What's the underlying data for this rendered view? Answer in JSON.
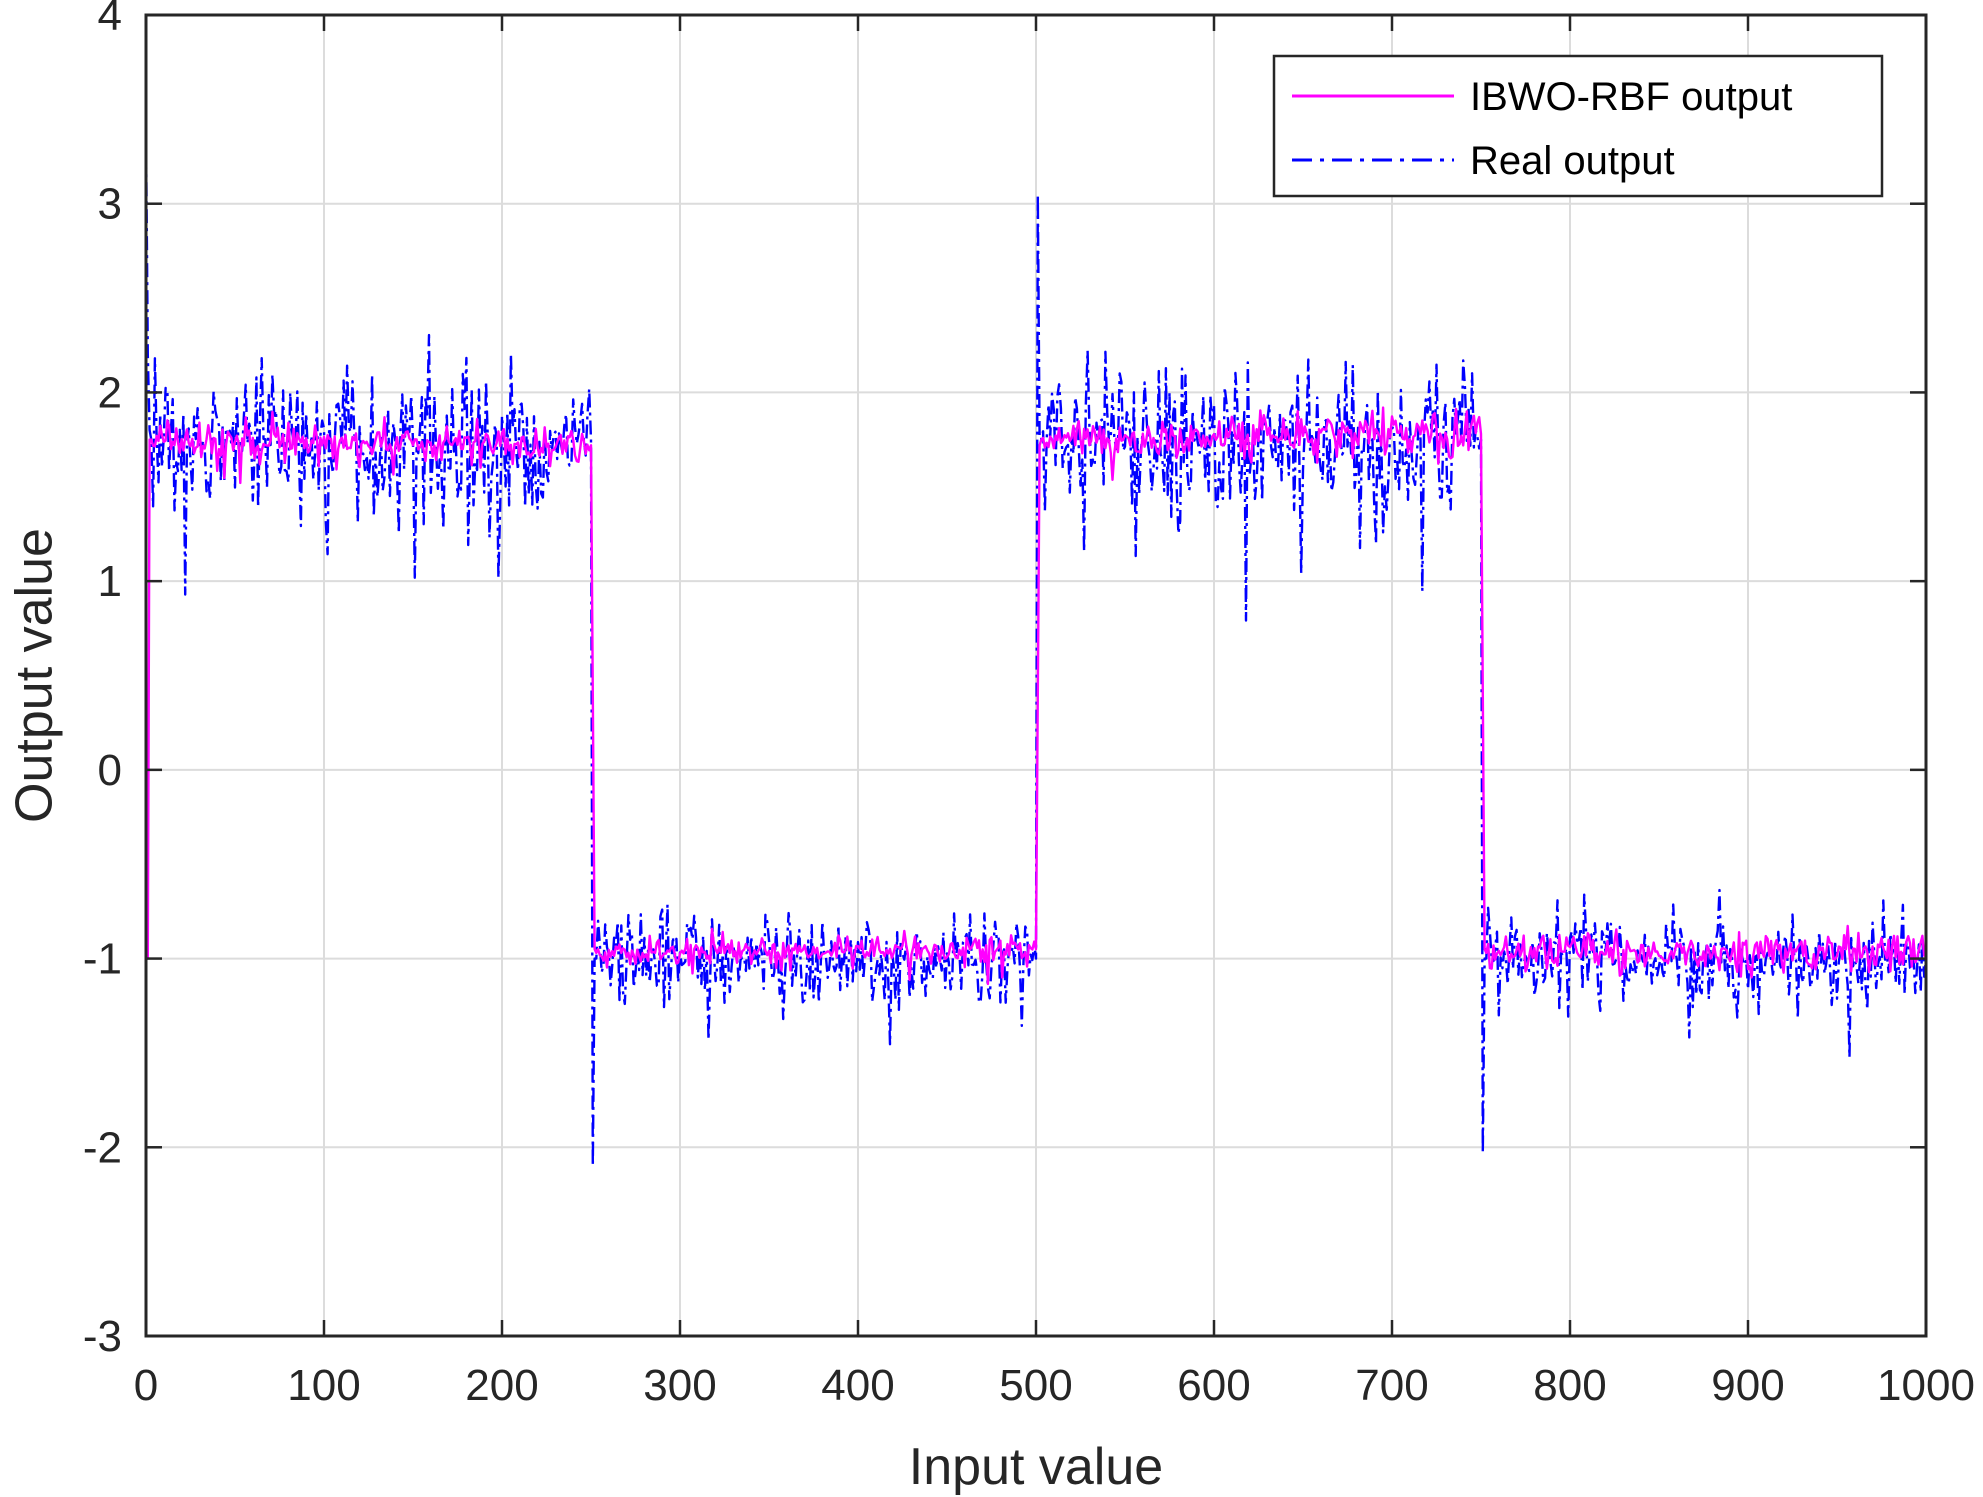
{
  "chart_data": {
    "type": "line",
    "title": "",
    "xlabel": "Input value",
    "ylabel": "Output value",
    "xlim": [
      0,
      1000
    ],
    "ylim": [
      -3,
      4
    ],
    "xticks": [
      0,
      100,
      200,
      300,
      400,
      500,
      600,
      700,
      800,
      900,
      1000
    ],
    "yticks": [
      -3,
      -2,
      -1,
      0,
      1,
      2,
      3,
      4
    ],
    "grid": true,
    "legend_position": "top-right",
    "series": [
      {
        "name": "IBWO-RBF output",
        "color": "#ff00ff",
        "line_style": "solid",
        "x": [
          0,
          1,
          2,
          3,
          250,
          251,
          252,
          253,
          500,
          501,
          502,
          503,
          750,
          751,
          752,
          753,
          1000
        ],
        "y": [
          -1,
          -1,
          1.75,
          1.75,
          1.72,
          0.4,
          -0.95,
          -0.97,
          -0.95,
          0.4,
          1.72,
          1.75,
          1.78,
          0.4,
          -0.95,
          -0.97,
          -0.97
        ],
        "noise_sd": [
          0,
          0,
          0.05,
          0.05,
          0.05,
          0,
          0,
          0.04,
          0.04,
          0,
          0,
          0.06,
          0.06,
          0,
          0,
          0.05,
          0.05
        ]
      },
      {
        "name": "Real output",
        "color": "#0000ff",
        "line_style": "dash-dot",
        "x": [
          0,
          1,
          2,
          3,
          250,
          251,
          252,
          253,
          500,
          501,
          502,
          503,
          750,
          751,
          752,
          753,
          1000
        ],
        "y": [
          3.4,
          2.2,
          1.8,
          1.75,
          1.75,
          -2.1,
          -1.0,
          -1.0,
          -1.0,
          3.05,
          1.75,
          1.75,
          1.75,
          -2.03,
          -1.0,
          -1.0,
          -1.0
        ],
        "noise_sd": [
          0,
          0,
          0.2,
          0.2,
          0.2,
          0,
          0,
          0.12,
          0.12,
          0,
          0,
          0.2,
          0.2,
          0,
          0,
          0.12,
          0.12
        ]
      }
    ]
  }
}
